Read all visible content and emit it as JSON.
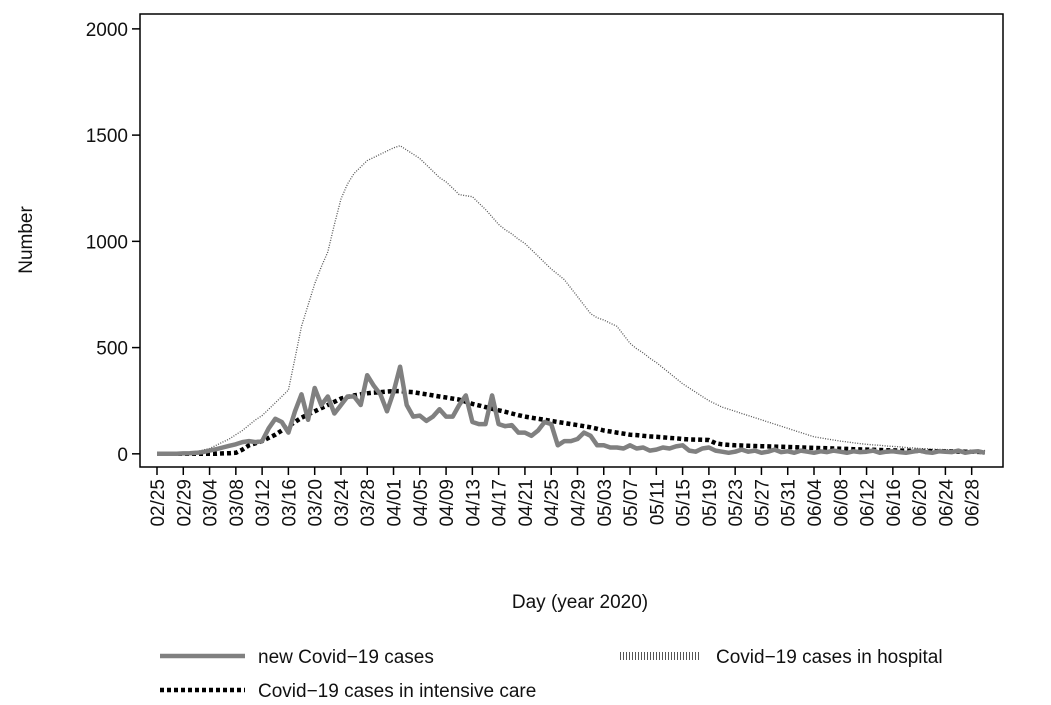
{
  "chart_data": {
    "type": "line",
    "x_label": "Day (year 2020)",
    "y_label": "Number",
    "categories": [
      "02/25",
      null,
      null,
      null,
      "02/29",
      null,
      null,
      null,
      "03/04",
      null,
      null,
      null,
      "03/08",
      null,
      null,
      null,
      "03/12",
      null,
      null,
      null,
      "03/16",
      null,
      null,
      null,
      "03/20",
      null,
      null,
      null,
      "03/24",
      null,
      null,
      null,
      "03/28",
      null,
      null,
      null,
      "04/01",
      null,
      null,
      null,
      "04/05",
      null,
      null,
      null,
      "04/09",
      null,
      null,
      null,
      "04/13",
      null,
      null,
      null,
      "04/17",
      null,
      null,
      null,
      "04/21",
      null,
      null,
      null,
      "04/25",
      null,
      null,
      null,
      "04/29",
      null,
      null,
      null,
      "05/03",
      null,
      null,
      null,
      "05/07",
      null,
      null,
      null,
      "05/11",
      null,
      null,
      null,
      "05/15",
      null,
      null,
      null,
      "05/19",
      null,
      null,
      null,
      "05/23",
      null,
      null,
      null,
      "05/27",
      null,
      null,
      null,
      "05/31",
      null,
      null,
      null,
      "06/04",
      null,
      null,
      null,
      "06/08",
      null,
      null,
      null,
      "06/12",
      null,
      null,
      null,
      "06/16",
      null,
      null,
      null,
      "06/20",
      null,
      null,
      null,
      "06/24",
      null,
      null,
      null,
      "06/28",
      null,
      null
    ],
    "series": [
      {
        "name": "new Covid−19 cases",
        "color": "#808080",
        "values": [
          0,
          0,
          0,
          0,
          2,
          3,
          5,
          8,
          15,
          22,
          30,
          38,
          45,
          55,
          60,
          55,
          60,
          120,
          165,
          150,
          100,
          200,
          280,
          160,
          310,
          230,
          270,
          190,
          230,
          270,
          270,
          230,
          370,
          320,
          280,
          200,
          290,
          410,
          230,
          175,
          180,
          155,
          175,
          210,
          175,
          175,
          230,
          275,
          150,
          140,
          140,
          275,
          140,
          130,
          135,
          100,
          100,
          85,
          110,
          150,
          140,
          40,
          60,
          60,
          70,
          100,
          85,
          40,
          40,
          30,
          30,
          25,
          40,
          25,
          30,
          15,
          20,
          30,
          25,
          35,
          40,
          15,
          10,
          25,
          30,
          15,
          10,
          5,
          10,
          20,
          10,
          15,
          5,
          10,
          20,
          8,
          12,
          5,
          15,
          10,
          5,
          12,
          8,
          15,
          10,
          5,
          12,
          8,
          10,
          15,
          5,
          10,
          12,
          8,
          5,
          10,
          15,
          8,
          5,
          12,
          10,
          8,
          15,
          5,
          10,
          12,
          5
        ]
      },
      {
        "name": "Covid−19 cases in hospital",
        "color": "#555555",
        "values": [
          0,
          0,
          0,
          0,
          2,
          5,
          10,
          18,
          25,
          40,
          55,
          70,
          90,
          110,
          135,
          160,
          180,
          210,
          240,
          270,
          300,
          450,
          600,
          700,
          800,
          880,
          950,
          1080,
          1200,
          1270,
          1320,
          1350,
          1380,
          1395,
          1410,
          1425,
          1440,
          1450,
          1430,
          1410,
          1390,
          1360,
          1330,
          1300,
          1280,
          1250,
          1220,
          1215,
          1210,
          1180,
          1150,
          1115,
          1080,
          1055,
          1035,
          1010,
          990,
          960,
          930,
          900,
          870,
          845,
          820,
          780,
          740,
          700,
          660,
          640,
          630,
          615,
          600,
          560,
          520,
          495,
          475,
          450,
          430,
          405,
          380,
          355,
          330,
          310,
          290,
          270,
          250,
          235,
          220,
          210,
          200,
          190,
          180,
          170,
          160,
          150,
          140,
          130,
          120,
          110,
          100,
          90,
          80,
          75,
          70,
          65,
          60,
          56,
          52,
          48,
          45,
          42,
          40,
          37,
          35,
          33,
          30,
          28,
          25,
          24,
          22,
          21,
          20,
          19,
          18,
          17,
          16,
          15,
          14
        ]
      },
      {
        "name": "Covid−19 cases in intensive care",
        "color": "#000000",
        "values": [
          0,
          0,
          0,
          0,
          0,
          0,
          0,
          0,
          0,
          0,
          2,
          3,
          5,
          20,
          40,
          50,
          60,
          75,
          90,
          110,
          130,
          150,
          170,
          185,
          200,
          215,
          230,
          245,
          260,
          268,
          275,
          280,
          285,
          288,
          290,
          293,
          295,
          295,
          292,
          290,
          285,
          280,
          275,
          270,
          265,
          260,
          255,
          245,
          235,
          228,
          220,
          212,
          205,
          198,
          190,
          182,
          175,
          170,
          165,
          160,
          155,
          150,
          145,
          140,
          135,
          130,
          125,
          118,
          110,
          105,
          100,
          95,
          90,
          88,
          85,
          82,
          80,
          78,
          75,
          73,
          70,
          68,
          67,
          66,
          65,
          50,
          45,
          42,
          40,
          39,
          38,
          37,
          36,
          35,
          34,
          33,
          32,
          31,
          30,
          29,
          28,
          27,
          26,
          25,
          24,
          23,
          22,
          21,
          20,
          19,
          18,
          17,
          16,
          15,
          15,
          14,
          14,
          13,
          13,
          12,
          12,
          11,
          11,
          10,
          10,
          9,
          8
        ]
      }
    ],
    "ylim": [
      -62,
      2070
    ],
    "yticks": [
      0,
      500,
      1000,
      1500,
      2000
    ],
    "grid": false
  }
}
